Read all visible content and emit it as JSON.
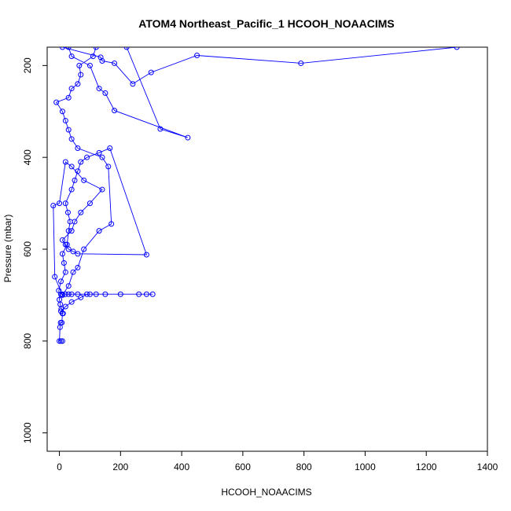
{
  "chart_data": {
    "type": "line",
    "title": "ATOM4 Northeast_Pacific_1 HCOOH_NOAACIMS",
    "xlabel": "HCOOH_NOAACIMS",
    "ylabel": "Pressure (mbar)",
    "xlim": [
      -40,
      1400
    ],
    "ylim": [
      1040,
      160
    ],
    "y_reversed": true,
    "x_ticks": [
      0,
      200,
      400,
      600,
      800,
      1000,
      1200,
      1400
    ],
    "y_ticks": [
      200,
      400,
      600,
      800,
      1000
    ],
    "grid": false,
    "legend": "none",
    "series_color": "#0000ff",
    "marker": "open-circle",
    "series": [
      {
        "x": [
          10,
          5,
          0,
          2,
          4,
          8,
          10,
          12,
          6,
          3,
          0,
          -2,
          5,
          20,
          15,
          10,
          25,
          30,
          35,
          28,
          20,
          40,
          50,
          60,
          70,
          90,
          130,
          165,
          285,
          60,
          45,
          30,
          20,
          10,
          40,
          50,
          70,
          100,
          140,
          80,
          40,
          20,
          0,
          -20,
          -15,
          10,
          30,
          45,
          60,
          80,
          130,
          170,
          160,
          140,
          60,
          40,
          30,
          20,
          10,
          -10,
          30,
          40,
          60,
          70,
          65,
          110,
          120,
          140,
          150,
          175,
          220,
          330,
          420,
          180,
          150,
          130,
          100,
          40,
          30,
          40,
          30,
          20,
          10,
          135,
          140,
          180,
          240,
          300,
          450,
          790,
          1300
        ],
        "y": [
          800,
          800,
          800,
          770,
          760,
          760,
          740,
          740,
          730,
          720,
          710,
          690,
          670,
          650,
          630,
          610,
          590,
          560,
          540,
          520,
          500,
          470,
          450,
          430,
          410,
          400,
          390,
          380,
          612,
          610,
          605,
          600,
          590,
          580,
          560,
          540,
          520,
          500,
          470,
          450,
          420,
          410,
          500,
          505,
          660,
          700,
          680,
          650,
          640,
          600,
          560,
          545,
          420,
          400,
          380,
          360,
          340,
          320,
          300,
          280,
          270,
          250,
          240,
          220,
          200,
          180,
          160,
          150,
          140,
          150,
          160,
          338,
          357,
          298,
          260,
          250,
          200,
          180,
          160,
          150,
          140,
          150,
          160,
          182,
          190,
          195,
          240,
          215,
          178,
          195,
          160
        ]
      },
      {
        "x": [
          5,
          20,
          40,
          70,
          90,
          120,
          285,
          305,
          260,
          200,
          150,
          100,
          60,
          40,
          30,
          20,
          10,
          5
        ],
        "y": [
          735,
          725,
          715,
          705,
          698,
          698,
          698,
          698,
          698,
          698,
          698,
          698,
          698,
          698,
          698,
          698,
          698,
          698
        ]
      }
    ]
  }
}
